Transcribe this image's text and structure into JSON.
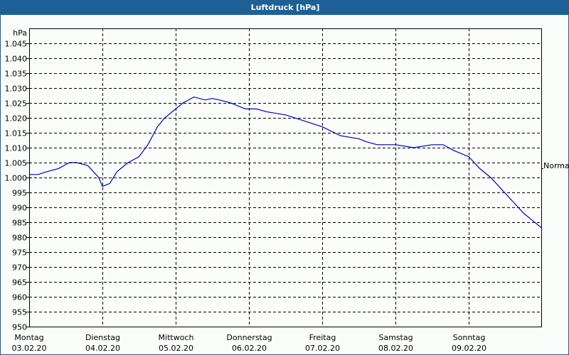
{
  "window": {
    "title": "Luftdruck [hPa]"
  },
  "colors": {
    "titlebar": "#1e6096",
    "line": "#0000b4",
    "grid": "#000000",
    "background": "#fbfdfb"
  },
  "chart_data": {
    "type": "line",
    "title": "Luftdruck [hPa]",
    "ylabel": "hPa",
    "xlabel": "",
    "ylim": [
      950,
      1050
    ],
    "y_ticks": [
      "950",
      "955",
      "960",
      "965",
      "970",
      "975",
      "980",
      "985",
      "990",
      "995",
      "1.000",
      "1.005",
      "1.010",
      "1.015",
      "1.020",
      "1.025",
      "1.030",
      "1.035",
      "1.040",
      "1.045"
    ],
    "x_ticks": [
      {
        "day": "Montag",
        "date": "03.02.20"
      },
      {
        "day": "Dienstag",
        "date": "04.02.20"
      },
      {
        "day": "Mittwoch",
        "date": "05.02.20"
      },
      {
        "day": "Donnerstag",
        "date": "06.02.20"
      },
      {
        "day": "Freitag",
        "date": "07.02.20"
      },
      {
        "day": "Samstag",
        "date": "08.02.20"
      },
      {
        "day": "Sonntag",
        "date": "09.02.20"
      }
    ],
    "reference_line": {
      "label": "Normal",
      "value": 1003
    },
    "grid": true,
    "series": [
      {
        "name": "Luftdruck",
        "x_days": [
          0,
          0.12,
          0.25,
          0.4,
          0.55,
          0.65,
          0.8,
          0.95,
          1.0,
          1.1,
          1.2,
          1.35,
          1.5,
          1.62,
          1.75,
          1.85,
          2.0,
          2.1,
          2.25,
          2.4,
          2.5,
          2.6,
          2.75,
          2.95,
          3.1,
          3.25,
          3.5,
          3.75,
          4.0,
          4.25,
          4.5,
          4.6,
          4.75,
          5.0,
          5.25,
          5.5,
          5.65,
          5.8,
          6.0,
          6.15,
          6.3,
          6.45,
          6.6,
          6.75,
          6.85,
          7.0
        ],
        "values": [
          1001,
          1001,
          1002,
          1003,
          1005,
          1005,
          1004,
          1000,
          997,
          998,
          1002,
          1005,
          1007,
          1011,
          1017,
          1020,
          1023,
          1025,
          1027,
          1026,
          1026.5,
          1026,
          1025,
          1023,
          1023,
          1022,
          1021,
          1019,
          1017,
          1014,
          1013,
          1012,
          1011,
          1011,
          1010,
          1011,
          1011,
          1009,
          1007,
          1003,
          1000,
          996,
          992,
          988,
          986,
          983
        ]
      }
    ]
  }
}
